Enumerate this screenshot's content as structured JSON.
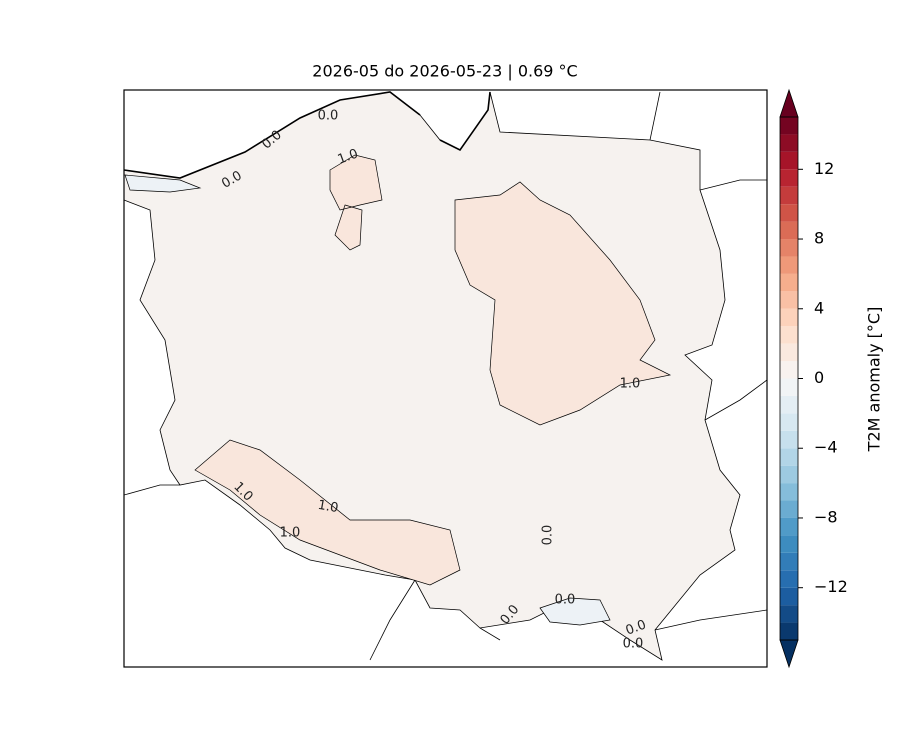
{
  "map": {
    "title": "2026-05 do 2026-05-23 | 0.69 °C",
    "contour_labels": [
      "0.0",
      "0.0",
      "0.0",
      "1.0",
      "1.0",
      "1.0",
      "1.0",
      "1.0",
      "0.0",
      "0.0",
      "0.0",
      "0.0",
      "0.0"
    ],
    "colorbar": {
      "label": "T2M anomaly [°C]",
      "lim": [
        -15,
        15
      ],
      "step": 1,
      "extend": "both",
      "cmap_stops": [
        "#053061",
        "#2166ac",
        "#4393c3",
        "#92c5de",
        "#d1e5f0",
        "#f7f7f7",
        "#fddbc7",
        "#f4a582",
        "#d6604d",
        "#b2182b",
        "#67001f"
      ],
      "ticks": [
        {
          "value": -12,
          "label": "−12"
        },
        {
          "value": -8,
          "label": "−8"
        },
        {
          "value": -4,
          "label": "−4"
        },
        0,
        4,
        8,
        12
      ]
    }
  }
}
